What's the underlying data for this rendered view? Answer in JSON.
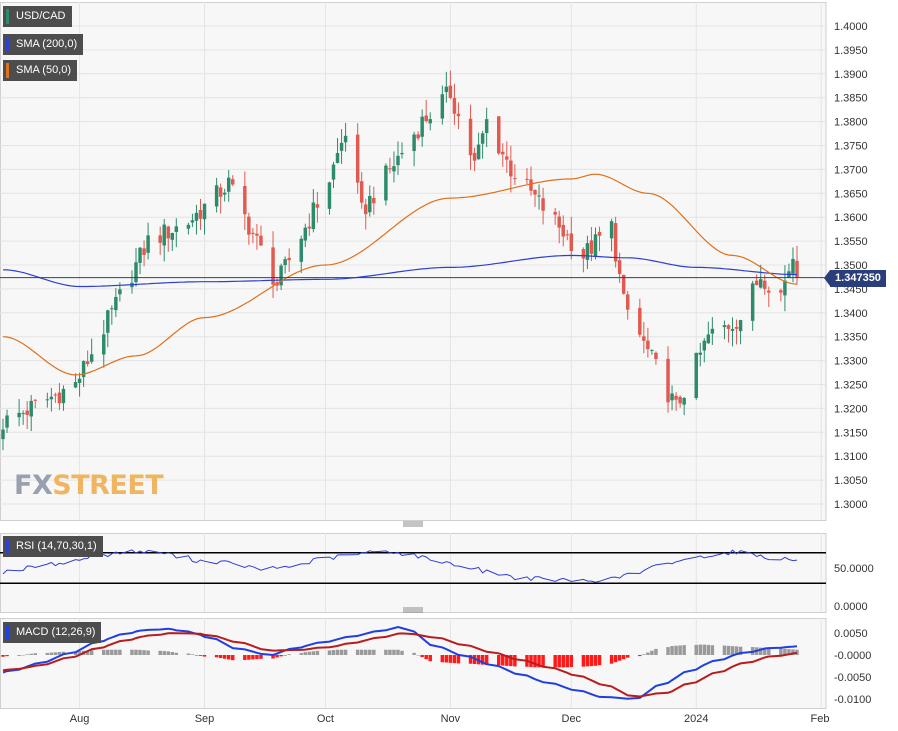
{
  "legend": {
    "symbol": "USD/CAD",
    "sma200": "SMA (200,0)",
    "sma50": "SMA (50,0)",
    "rsi": "RSI (14,70,30,1)",
    "macd": "MACD (12,26,9)"
  },
  "logo": {
    "part1": "FX",
    "part2": "STREET"
  },
  "price_tag": "1.347350",
  "colors": {
    "bull": "#2e8b6a",
    "bear": "#e05a50",
    "sma200": "#2f3fd0",
    "sma50": "#e0701a",
    "rsi": "#2f3fd0",
    "macd": "#1f40e0",
    "signal": "#b81c1c",
    "hist_pos": "#9a9a9a",
    "hist_neg": "#ff1a1a",
    "tag_bg": "#4d4d4d",
    "price_tag_bg": "#2a3f7a",
    "logo_fx": "#9aa0b0",
    "logo_street": "#f0b560"
  },
  "chart_data": [
    {
      "type": "candlestick",
      "title": "USD/CAD",
      "x_tick_labels": [
        "Aug",
        "Sep",
        "Oct",
        "Nov",
        "Dec",
        "2024",
        "Feb"
      ],
      "y_tick_labels": [
        "1.4000",
        "1.3950",
        "1.3900",
        "1.3850",
        "1.3800",
        "1.3750",
        "1.3700",
        "1.3650",
        "1.3600",
        "1.3550",
        "1.3500",
        "1.3450",
        "1.3400",
        "1.3350",
        "1.3300",
        "1.3250",
        "1.3200",
        "1.3150",
        "1.3100",
        "1.3050",
        "1.3000"
      ],
      "ylim": [
        1.2965,
        1.405
      ],
      "last_price": 1.34735,
      "grid": true,
      "key_points": [
        {
          "date": "2023-07-13",
          "close": 1.317
        },
        {
          "date": "2023-07-31",
          "close": 1.325
        },
        {
          "date": "2023-08-18",
          "close": 1.355
        },
        {
          "date": "2023-08-28",
          "close": 1.359
        },
        {
          "date": "2023-09-07",
          "close": 1.367
        },
        {
          "date": "2023-09-19",
          "close": 1.346
        },
        {
          "date": "2023-10-02",
          "close": 1.368
        },
        {
          "date": "2023-10-06",
          "close": 1.378
        },
        {
          "date": "2023-10-10",
          "close": 1.361
        },
        {
          "date": "2023-10-25",
          "close": 1.38
        },
        {
          "date": "2023-11-01",
          "close": 1.386
        },
        {
          "date": "2023-11-07",
          "close": 1.371
        },
        {
          "date": "2023-11-10",
          "close": 1.38
        },
        {
          "date": "2023-11-16",
          "close": 1.37
        },
        {
          "date": "2023-11-30",
          "close": 1.356
        },
        {
          "date": "2023-12-04",
          "close": 1.352
        },
        {
          "date": "2023-12-11",
          "close": 1.358
        },
        {
          "date": "2023-12-14",
          "close": 1.342
        },
        {
          "date": "2023-12-27",
          "close": 1.32
        },
        {
          "date": "2024-01-04",
          "close": 1.335
        },
        {
          "date": "2024-01-12",
          "close": 1.339
        },
        {
          "date": "2024-01-17",
          "close": 1.348
        },
        {
          "date": "2024-01-22",
          "close": 1.344
        },
        {
          "date": "2024-01-25",
          "close": 1.352
        },
        {
          "date": "2024-01-26",
          "close": 1.3474
        }
      ],
      "series": [
        {
          "name": "SMA (200,0)",
          "points": [
            [
              "2023-07-13",
              1.349
            ],
            [
              "2023-08-01",
              1.3455
            ],
            [
              "2023-09-01",
              1.3465
            ],
            [
              "2023-10-01",
              1.347
            ],
            [
              "2023-11-01",
              1.3495
            ],
            [
              "2023-12-01",
              1.352
            ],
            [
              "2023-12-15",
              1.3515
            ],
            [
              "2024-01-01",
              1.3495
            ],
            [
              "2024-01-26",
              1.348
            ]
          ]
        },
        {
          "name": "SMA (50,0)",
          "points": [
            [
              "2023-07-13",
              1.335
            ],
            [
              "2023-07-31",
              1.327
            ],
            [
              "2023-08-15",
              1.331
            ],
            [
              "2023-09-01",
              1.339
            ],
            [
              "2023-10-01",
              1.35
            ],
            [
              "2023-11-01",
              1.364
            ],
            [
              "2023-12-01",
              1.368
            ],
            [
              "2023-12-07",
              1.369
            ],
            [
              "2023-12-20",
              1.365
            ],
            [
              "2024-01-10",
              1.352
            ],
            [
              "2024-01-26",
              1.346
            ]
          ]
        }
      ]
    },
    {
      "type": "line",
      "title": "RSI (14,70,30,1)",
      "y_tick_labels": [
        "50.0000",
        "0.0000"
      ],
      "levels": [
        70,
        30
      ],
      "ylim": [
        0,
        100
      ],
      "series": [
        {
          "name": "RSI",
          "values": [
            45,
            52,
            58,
            67,
            72,
            70,
            60,
            57,
            48,
            52,
            62,
            68,
            73,
            65,
            56,
            47,
            38,
            35,
            33,
            35,
            45,
            58,
            66,
            72,
            64,
            60
          ]
        }
      ]
    },
    {
      "type": "line",
      "title": "MACD (12,26,9)",
      "y_tick_labels": [
        "0.0050",
        "-0.0000",
        "-0.0050",
        "-0.0100"
      ],
      "ylim": [
        -0.011,
        0.0068
      ],
      "series": [
        {
          "name": "MACD",
          "values": [
            -0.004,
            -0.002,
            0.0005,
            0.0035,
            0.0055,
            0.006,
            0.0045,
            0.0015,
            0.0,
            0.002,
            0.0035,
            0.005,
            0.0065,
            0.002,
            -0.0005,
            -0.003,
            -0.0055,
            -0.0075,
            -0.0095,
            -0.01,
            -0.006,
            -0.0025,
            0.0,
            0.0015,
            0.002
          ]
        },
        {
          "name": "Signal",
          "values": [
            -0.0035,
            -0.0025,
            -0.0005,
            0.002,
            0.004,
            0.005,
            0.0048,
            0.003,
            0.001,
            0.0012,
            0.002,
            0.0035,
            0.005,
            0.004,
            0.002,
            0.0,
            -0.002,
            -0.004,
            -0.0065,
            -0.0095,
            -0.0085,
            -0.0055,
            -0.0025,
            -0.0005,
            0.0005
          ]
        }
      ]
    }
  ]
}
